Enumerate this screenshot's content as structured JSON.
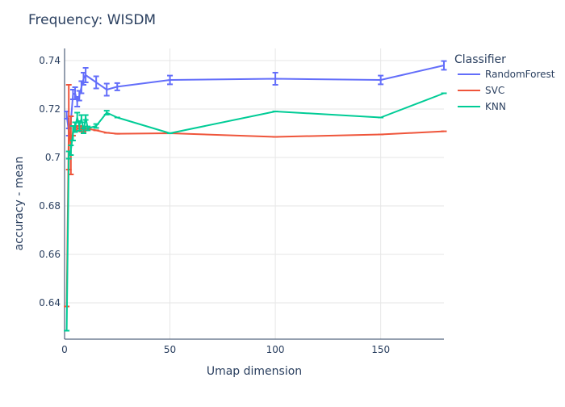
{
  "chart_data": {
    "type": "line",
    "title": "Frequency: WISDM",
    "xlabel": "Umap dimension",
    "ylabel": "accuracy - mean",
    "xlim": [
      0,
      180
    ],
    "ylim": [
      0.625,
      0.745
    ],
    "x_ticks": [
      0,
      50,
      100,
      150
    ],
    "y_ticks": [
      0.64,
      0.66,
      0.68,
      0.7,
      0.72,
      0.74
    ],
    "x_tick_labels": [
      "0",
      "50",
      "100",
      "150"
    ],
    "y_tick_labels": [
      "0.64",
      "0.66",
      "0.68",
      "0.7",
      "0.72",
      "0.74"
    ],
    "grid": true,
    "legend": {
      "title": "Classifier",
      "position": "right"
    },
    "series": [
      {
        "name": "RandomForest",
        "color": "#636efa",
        "points": [
          {
            "x": 1,
            "y": 0.7175,
            "err": 0.0015
          },
          {
            "x": 2,
            "y": 0.7105,
            "err": 0.0015
          },
          {
            "x": 3,
            "y": 0.715,
            "err": 0.002
          },
          {
            "x": 4,
            "y": 0.726,
            "err": 0.002
          },
          {
            "x": 5,
            "y": 0.7265,
            "err": 0.0025
          },
          {
            "x": 6,
            "y": 0.723,
            "err": 0.002
          },
          {
            "x": 7,
            "y": 0.7255,
            "err": 0.002
          },
          {
            "x": 8,
            "y": 0.729,
            "err": 0.0025
          },
          {
            "x": 9,
            "y": 0.7325,
            "err": 0.0025
          },
          {
            "x": 10,
            "y": 0.734,
            "err": 0.003
          },
          {
            "x": 15,
            "y": 0.731,
            "err": 0.0025
          },
          {
            "x": 20,
            "y": 0.728,
            "err": 0.0025
          },
          {
            "x": 25,
            "y": 0.7292,
            "err": 0.0015
          },
          {
            "x": 50,
            "y": 0.732,
            "err": 0.0018
          },
          {
            "x": 100,
            "y": 0.7325,
            "err": 0.0025
          },
          {
            "x": 150,
            "y": 0.732,
            "err": 0.0018
          },
          {
            "x": 180,
            "y": 0.738,
            "err": 0.0018
          }
        ]
      },
      {
        "name": "SVC",
        "color": "#ef553b",
        "points": [
          {
            "x": 1,
            "y": 0.6385,
            "err": 0.0
          },
          {
            "x": 2,
            "y": 0.7125,
            "err": 0.0175
          },
          {
            "x": 3,
            "y": 0.705,
            "err": 0.012
          },
          {
            "x": 4,
            "y": 0.711,
            "err": 0.002
          },
          {
            "x": 5,
            "y": 0.713,
            "err": 0.0015
          },
          {
            "x": 6,
            "y": 0.712,
            "err": 0.001
          },
          {
            "x": 7,
            "y": 0.712,
            "err": 0.001
          },
          {
            "x": 8,
            "y": 0.7115,
            "err": 0.0008
          },
          {
            "x": 9,
            "y": 0.7115,
            "err": 0.0008
          },
          {
            "x": 10,
            "y": 0.712,
            "err": 0.0008
          },
          {
            "x": 15,
            "y": 0.7112,
            "err": 0.0
          },
          {
            "x": 20,
            "y": 0.7102,
            "err": 0.0
          },
          {
            "x": 25,
            "y": 0.7098,
            "err": 0.0
          },
          {
            "x": 50,
            "y": 0.71,
            "err": 0.0
          },
          {
            "x": 100,
            "y": 0.7085,
            "err": 0.0
          },
          {
            "x": 150,
            "y": 0.7095,
            "err": 0.0
          },
          {
            "x": 180,
            "y": 0.7108,
            "err": 0.0
          }
        ]
      },
      {
        "name": "KNN",
        "color": "#00cc96",
        "points": [
          {
            "x": 1,
            "y": 0.6285,
            "err": 0.0
          },
          {
            "x": 2,
            "y": 0.701,
            "err": 0.0015
          },
          {
            "x": 3,
            "y": 0.703,
            "err": 0.002
          },
          {
            "x": 4,
            "y": 0.71,
            "err": 0.003
          },
          {
            "x": 5,
            "y": 0.7125,
            "err": 0.002
          },
          {
            "x": 6,
            "y": 0.7165,
            "err": 0.002
          },
          {
            "x": 7,
            "y": 0.713,
            "err": 0.002
          },
          {
            "x": 8,
            "y": 0.716,
            "err": 0.0015
          },
          {
            "x": 9,
            "y": 0.711,
            "err": 0.001
          },
          {
            "x": 10,
            "y": 0.7165,
            "err": 0.001
          },
          {
            "x": 11,
            "y": 0.712,
            "err": 0.0008
          },
          {
            "x": 15,
            "y": 0.713,
            "err": 0.0008
          },
          {
            "x": 20,
            "y": 0.7185,
            "err": 0.0008
          },
          {
            "x": 25,
            "y": 0.7165,
            "err": 0.0
          },
          {
            "x": 50,
            "y": 0.71,
            "err": 0.0
          },
          {
            "x": 100,
            "y": 0.719,
            "err": 0.0
          },
          {
            "x": 150,
            "y": 0.7165,
            "err": 0.0
          },
          {
            "x": 180,
            "y": 0.7265,
            "err": 0.0
          }
        ]
      }
    ]
  }
}
